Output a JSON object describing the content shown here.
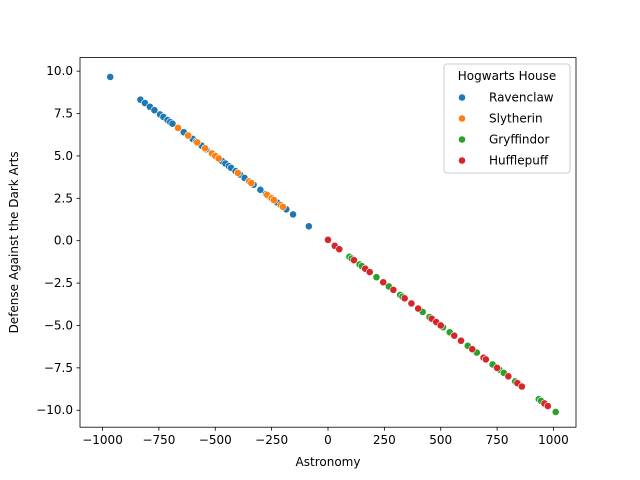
{
  "chart_data": {
    "type": "scatter",
    "xlabel": "Astronomy",
    "ylabel": "Defense Against the Dark Arts",
    "xlim": [
      -1100,
      1100
    ],
    "ylim": [
      -11.0,
      10.8
    ],
    "x_ticks": [
      -1000,
      -750,
      -500,
      -250,
      0,
      250,
      500,
      750,
      1000
    ],
    "y_ticks": [
      -10.0,
      -7.5,
      -5.0,
      -2.5,
      0.0,
      2.5,
      5.0,
      7.5,
      10.0
    ],
    "x_tick_labels": [
      "−1000",
      "−750",
      "−500",
      "−250",
      "0",
      "250",
      "500",
      "750",
      "1000"
    ],
    "y_tick_labels": [
      "−10.0",
      "−7.5",
      "−5.0",
      "−2.5",
      "0.0",
      "2.5",
      "5.0",
      "7.5",
      "10.0"
    ],
    "grid": false,
    "legend_position": "top-right",
    "legend_title": "Hogwarts House",
    "series": [
      {
        "name": "Ravenclaw",
        "color": "#1f77b4",
        "x": [
          -966,
          -832,
          -812,
          -790,
          -770,
          -745,
          -730,
          -712,
          -700,
          -690,
          -665,
          -640,
          -620,
          -600,
          -585,
          -560,
          -540,
          -510,
          -490,
          -470,
          -455,
          -440,
          -430,
          -410,
          -390,
          -370,
          -350,
          -330,
          -300,
          -275,
          -260,
          -245,
          -225,
          -185,
          -155,
          -85
        ],
        "y": [
          9.66,
          8.32,
          8.12,
          7.9,
          7.7,
          7.45,
          7.3,
          7.12,
          7.0,
          6.9,
          6.65,
          6.4,
          6.2,
          6.0,
          5.85,
          5.6,
          5.4,
          5.1,
          4.9,
          4.7,
          4.55,
          4.4,
          4.3,
          4.1,
          3.9,
          3.7,
          3.5,
          3.3,
          3.0,
          2.75,
          2.6,
          2.45,
          2.25,
          1.85,
          1.55,
          0.85
        ]
      },
      {
        "name": "Slytherin",
        "color": "#ff7f0e",
        "x": [
          -665,
          -620,
          -580,
          -545,
          -515,
          -500,
          -485,
          -400,
          -350,
          -340,
          -270,
          -250,
          -240,
          -210,
          -200
        ],
        "y": [
          6.65,
          6.2,
          5.8,
          5.45,
          5.15,
          5.0,
          4.85,
          4.0,
          3.5,
          3.4,
          2.7,
          2.5,
          2.4,
          2.1,
          2.0
        ]
      },
      {
        "name": "Gryffindor",
        "color": "#2ca02c",
        "x": [
          95,
          105,
          140,
          150,
          215,
          270,
          320,
          330,
          420,
          450,
          510,
          540,
          620,
          660,
          730,
          760,
          780,
          830,
          935,
          945,
          1010
        ],
        "y": [
          -0.95,
          -1.05,
          -1.4,
          -1.5,
          -2.15,
          -2.7,
          -3.2,
          -3.3,
          -4.2,
          -4.5,
          -5.1,
          -5.4,
          -6.2,
          -6.6,
          -7.3,
          -7.6,
          -7.8,
          -8.3,
          -9.35,
          -9.45,
          -10.1
        ],
        "x_more": []
      },
      {
        "name": "Hufflepuff",
        "color": "#d62728",
        "x": [
          0,
          30,
          50,
          115,
          165,
          185,
          245,
          290,
          340,
          370,
          400,
          460,
          480,
          500,
          560,
          590,
          640,
          690,
          700,
          750,
          800,
          840,
          860,
          960,
          975
        ],
        "y": [
          0.05,
          -0.3,
          -0.5,
          -1.15,
          -1.65,
          -1.85,
          -2.45,
          -2.9,
          -3.4,
          -3.7,
          -4.0,
          -4.6,
          -4.8,
          -5.0,
          -5.6,
          -5.9,
          -6.4,
          -6.9,
          -7.0,
          -7.5,
          -8.0,
          -8.4,
          -8.6,
          -9.6,
          -9.75
        ]
      }
    ]
  }
}
